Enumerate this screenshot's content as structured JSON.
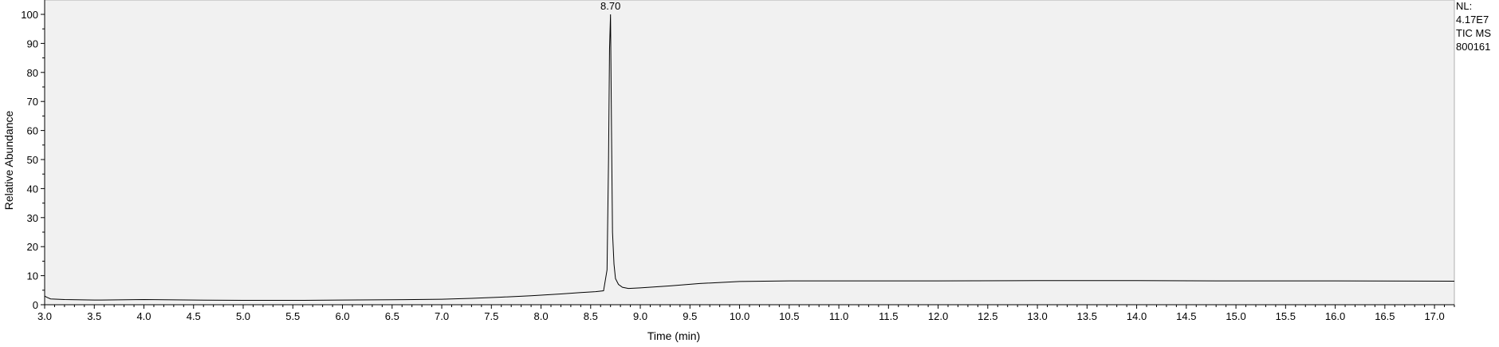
{
  "chart_data": {
    "type": "line",
    "title": "",
    "xlabel": "Time (min)",
    "ylabel": "Relative Abundance",
    "xlim": [
      3.0,
      17.2
    ],
    "ylim": [
      0,
      100
    ],
    "x_ticks": [
      "3.0",
      "3.5",
      "4.0",
      "4.5",
      "5.0",
      "5.5",
      "6.0",
      "6.5",
      "7.0",
      "7.5",
      "8.0",
      "8.5",
      "9.0",
      "9.5",
      "10.0",
      "10.5",
      "11.0",
      "11.5",
      "12.0",
      "12.5",
      "13.0",
      "13.5",
      "14.0",
      "14.5",
      "15.0",
      "15.5",
      "16.0",
      "16.5",
      "17.0"
    ],
    "y_ticks": [
      "0",
      "10",
      "20",
      "30",
      "40",
      "50",
      "60",
      "70",
      "80",
      "90",
      "100"
    ],
    "grid": false,
    "plot_background": "#f1f1f1",
    "line_color": "#000000",
    "annotations": [
      {
        "x": 8.7,
        "y": 100,
        "text": "8.70"
      }
    ],
    "info": [
      "NL:",
      "4.17E7",
      "TIC  MS",
      "800161"
    ],
    "series": [
      {
        "x": [
          3.0,
          3.02,
          3.06,
          3.2,
          3.5,
          4.0,
          4.5,
          5.0,
          5.5,
          6.0,
          6.5,
          7.0,
          7.3,
          7.6,
          7.9,
          8.2,
          8.4,
          8.55,
          8.63,
          8.665,
          8.68,
          8.69,
          8.7,
          8.71,
          8.72,
          8.735,
          8.75,
          8.78,
          8.82,
          8.88,
          9.0,
          9.3,
          9.6,
          10.0,
          10.5,
          11.0,
          12.0,
          13.0,
          14.0,
          15.0,
          16.0,
          17.2
        ],
        "y": [
          3.0,
          2.6,
          2.0,
          1.8,
          1.6,
          1.8,
          1.6,
          1.5,
          1.5,
          1.6,
          1.7,
          1.9,
          2.2,
          2.6,
          3.1,
          3.7,
          4.2,
          4.5,
          4.8,
          12,
          50,
          88,
          100,
          60,
          25,
          14,
          9,
          7,
          6,
          5.6,
          5.8,
          6.5,
          7.3,
          8.0,
          8.2,
          8.2,
          8.2,
          8.3,
          8.3,
          8.2,
          8.2,
          8.1
        ]
      }
    ]
  }
}
